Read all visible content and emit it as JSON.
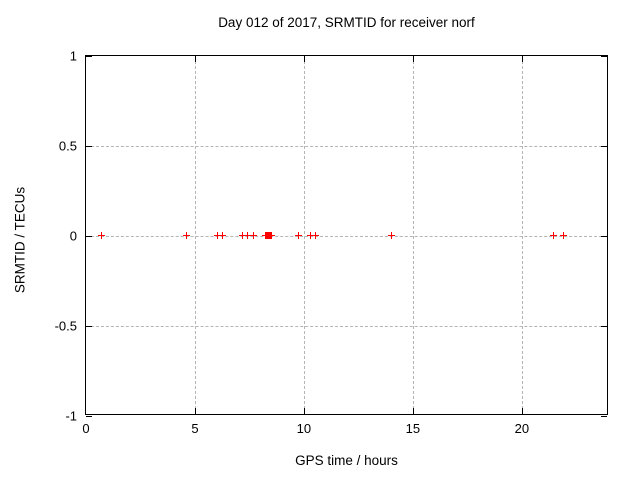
{
  "title": "Day 012 of 2017, SRMTID for receiver norf",
  "chart_data": {
    "type": "scatter",
    "title": "Day 012 of 2017, SRMTID for receiver norf",
    "xlabel": "GPS time / hours",
    "ylabel": "SRMTID / TECUs",
    "xlim": [
      0,
      24
    ],
    "ylim": [
      -1,
      1
    ],
    "xticks": [
      0,
      5,
      10,
      15,
      20
    ],
    "yticks": [
      1,
      0.5,
      0,
      -0.5,
      -1
    ],
    "grid": true,
    "legend": "none",
    "marker": "plus",
    "marker_color": "#ff0000",
    "grid_color": "#b5b5b5",
    "border_color": "#000000",
    "note": "All points lie on y=0; the dense cluster near x=8.4 renders as a solid square of overlapping + markers",
    "series": [
      {
        "name": "SRMTID",
        "points": [
          [
            0.75,
            0
          ],
          [
            4.65,
            0
          ],
          [
            6.07,
            0
          ],
          [
            6.3,
            0
          ],
          [
            7.19,
            0
          ],
          [
            7.44,
            0
          ],
          [
            7.69,
            0
          ],
          [
            8.28,
            0
          ],
          [
            8.32,
            0
          ],
          [
            8.36,
            0
          ],
          [
            8.4,
            0
          ],
          [
            8.44,
            0
          ],
          [
            8.48,
            0
          ],
          [
            8.52,
            0
          ],
          [
            9.77,
            0
          ],
          [
            10.32,
            0
          ],
          [
            10.55,
            0
          ],
          [
            14.04,
            0
          ],
          [
            21.47,
            0
          ],
          [
            21.93,
            0
          ]
        ]
      }
    ]
  }
}
